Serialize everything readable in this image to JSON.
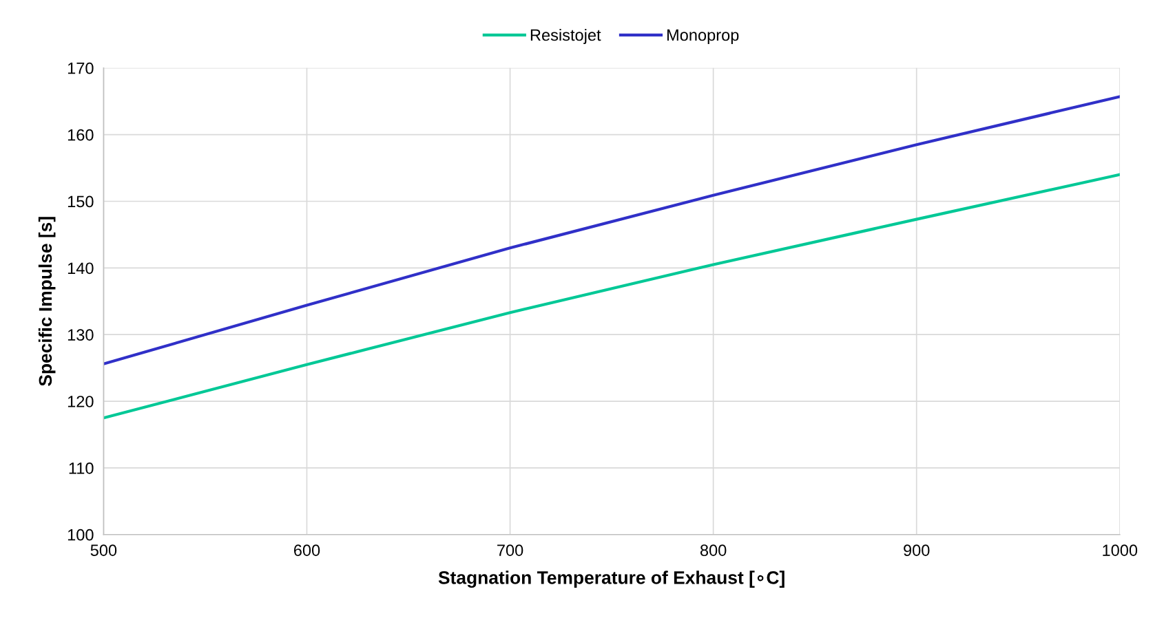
{
  "chart_data": {
    "type": "line",
    "xlabel": "Stagnation Temperature of Exhaust [∘C]",
    "ylabel": "Specific Impulse [s]",
    "x": [
      500,
      600,
      700,
      800,
      900,
      1000
    ],
    "series": [
      {
        "name": "Resistojet",
        "color": "#00c896",
        "values": [
          117.5,
          125.5,
          133.3,
          140.5,
          147.3,
          154.0
        ]
      },
      {
        "name": "Monoprop",
        "color": "#3030c8",
        "values": [
          125.6,
          134.4,
          143.0,
          150.9,
          158.5,
          165.7
        ]
      }
    ],
    "xlim": [
      500,
      1000
    ],
    "xticks": [
      500,
      600,
      700,
      800,
      900,
      1000
    ],
    "ylim": [
      100,
      170
    ],
    "yticks": [
      100,
      110,
      120,
      130,
      140,
      150,
      160,
      170
    ],
    "grid": true,
    "legend": "top",
    "marker": "none",
    "line_style": "solid"
  }
}
